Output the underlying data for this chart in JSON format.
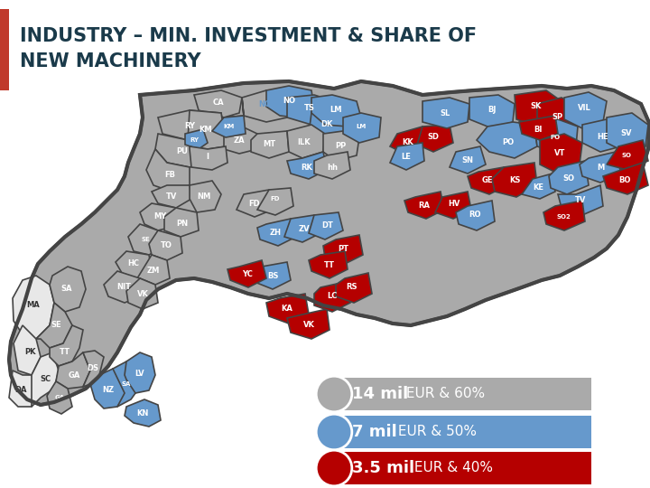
{
  "title_line1": "INDUSTRY – MIN. INVESTMENT & SHARE OF",
  "title_line2": "NEW MACHINERY",
  "title_color": "#1a3a4a",
  "title_fontsize": 15,
  "bg_color": "#ffffff",
  "map_gray": "#aaaaaa",
  "map_gray_light": "#c0c0c0",
  "map_blue": "#6699cc",
  "map_red": "#b50000",
  "map_white": "#e8e8e8",
  "map_outline": "#444444",
  "map_outline_thin": "#666666",
  "legend_items": [
    {
      "value": "14 mil",
      "text": " EUR & 60%",
      "bar_color": "#aaaaaa",
      "circle_color": "#aaaaaa"
    },
    {
      "value": "7 mil",
      "text": " EUR & 50%",
      "bar_color": "#6699cc",
      "circle_color": "#6699cc"
    },
    {
      "value": "3.5 mil",
      "text": " EUR & 40%",
      "bar_color": "#b50000",
      "circle_color": "#b50000"
    }
  ],
  "legend_text_color": "#ffffff",
  "legend_value_fontsize": 13,
  "legend_text_fontsize": 11,
  "accent_color": "#c0392b"
}
